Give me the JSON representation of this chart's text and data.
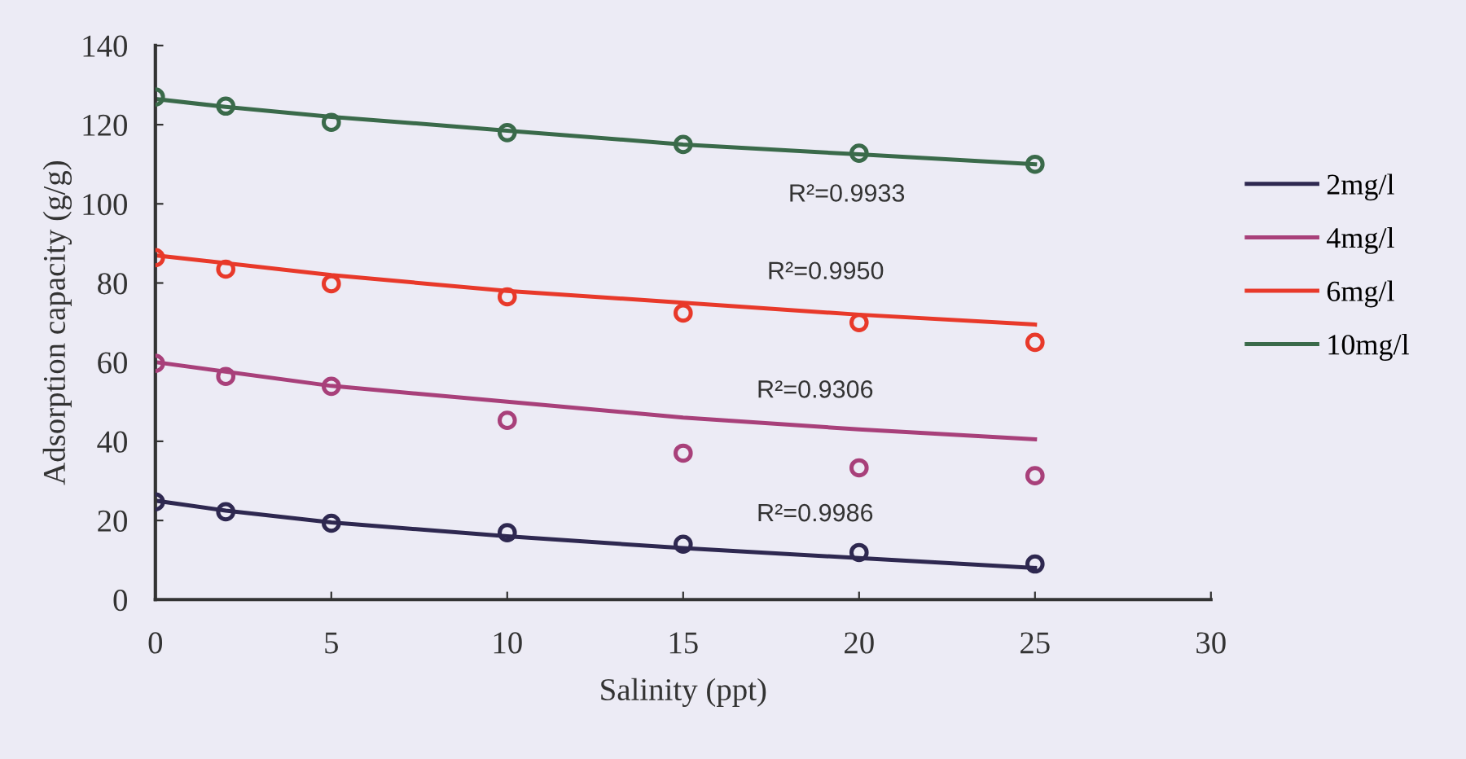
{
  "chart_data": {
    "type": "scatter",
    "xlabel": "Salinity (ppt)",
    "ylabel": "Adsorption capacity (g/g)",
    "xlim": [
      0,
      30
    ],
    "xticks": [
      0,
      5,
      10,
      15,
      20,
      25,
      30
    ],
    "ylim": [
      0,
      140
    ],
    "yticks": [
      0,
      20,
      40,
      60,
      80,
      100,
      120,
      140
    ],
    "grid": false,
    "legend": "right",
    "series": [
      {
        "type": "line",
        "marker": "none",
        "name": "2mg/l",
        "color": "#2e2850",
        "x": [
          0,
          2,
          5,
          10,
          15,
          20,
          25
        ],
        "values": [
          25,
          22.5,
          19.5,
          16,
          13,
          10.5,
          8
        ]
      },
      {
        "type": "line",
        "marker": "none",
        "name": "4mg/l",
        "color": "#a8407a",
        "x": [
          0,
          5,
          10,
          15,
          20,
          25
        ],
        "values": [
          60,
          54,
          50,
          46,
          43,
          40.5
        ]
      },
      {
        "type": "line",
        "marker": "none",
        "name": "6mg/l",
        "color": "#e8392a",
        "x": [
          0,
          5,
          10,
          15,
          20,
          25
        ],
        "values": [
          87,
          82,
          78,
          75,
          72,
          69.5
        ]
      },
      {
        "type": "line",
        "marker": "none",
        "name": "10mg/l",
        "color": "#3a6a4a",
        "x": [
          0,
          2,
          5,
          10,
          15,
          20,
          25
        ],
        "values": [
          126.5,
          124.5,
          122,
          118.5,
          115,
          112.5,
          110
        ]
      },
      {
        "marker": "circle",
        "color": "#2e2850",
        "x": [
          0,
          2,
          5,
          10,
          15,
          20,
          25
        ],
        "values": [
          24.7,
          22.2,
          19.3,
          16.9,
          14,
          11.9,
          9
        ]
      },
      {
        "marker": "circle",
        "color": "#a8407a",
        "x": [
          0,
          2,
          5,
          10,
          15,
          20,
          25
        ],
        "values": [
          59.7,
          56.4,
          53.9,
          45.3,
          37,
          33.3,
          31.3
        ]
      },
      {
        "marker": "circle",
        "color": "#e8392a",
        "x": [
          0,
          2,
          5,
          10,
          15,
          20,
          25
        ],
        "values": [
          86.4,
          83.5,
          79.8,
          76.5,
          72.4,
          70,
          65
        ]
      },
      {
        "marker": "circle",
        "color": "#3a6a4a",
        "x": [
          0,
          2,
          5,
          10,
          15,
          20,
          25
        ],
        "values": [
          127,
          124.7,
          120.6,
          118,
          115,
          112.8,
          110
        ]
      }
    ],
    "annotations": [
      "R²=0.9933",
      "R²=0.9950",
      "R²=0.9306",
      "R²=0.9986"
    ]
  }
}
